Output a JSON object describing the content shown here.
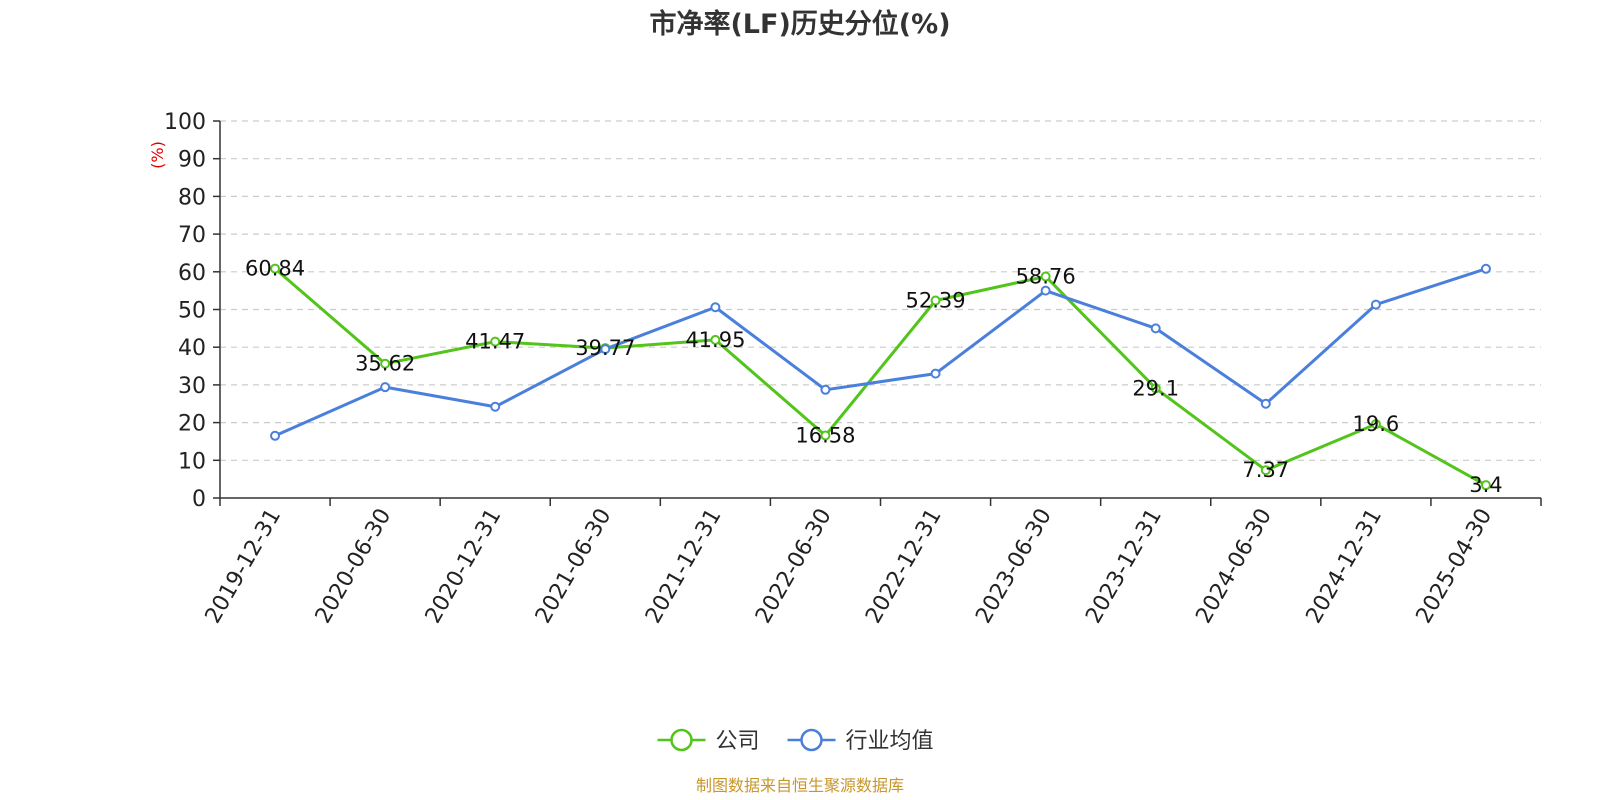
{
  "chart_data": {
    "type": "line",
    "title": "市净率(LF)历史分位(%)",
    "ylabel": "(%)",
    "xlabel": "",
    "ylim": [
      0,
      100
    ],
    "yticks": [
      0,
      10,
      20,
      30,
      40,
      50,
      60,
      70,
      80,
      90,
      100
    ],
    "grid": true,
    "legend_position": "bottom-center",
    "categories": [
      "2019-12-31",
      "2020-06-30",
      "2020-12-31",
      "2021-06-30",
      "2021-12-31",
      "2022-06-30",
      "2022-12-31",
      "2023-06-30",
      "2023-12-31",
      "2024-06-30",
      "2024-12-31",
      "2025-04-30"
    ],
    "series": [
      {
        "name": "公司",
        "color": "#52c41a",
        "show_labels": true,
        "values": [
          60.84,
          35.62,
          41.47,
          39.77,
          41.95,
          16.58,
          52.39,
          58.76,
          29.1,
          7.37,
          19.6,
          3.4
        ]
      },
      {
        "name": "行业均值",
        "color": "#4a7fdb",
        "show_labels": false,
        "values": [
          16.5,
          29.4,
          24.2,
          39.5,
          50.6,
          28.7,
          33.0,
          55.0,
          45.0,
          25.0,
          51.3,
          60.8
        ]
      }
    ],
    "source": "制图数据来自恒生聚源数据库",
    "colors": {
      "axis": "#333333",
      "grid": "#cccccc",
      "ylabel": "#e00000",
      "source": "#c8962a"
    }
  }
}
